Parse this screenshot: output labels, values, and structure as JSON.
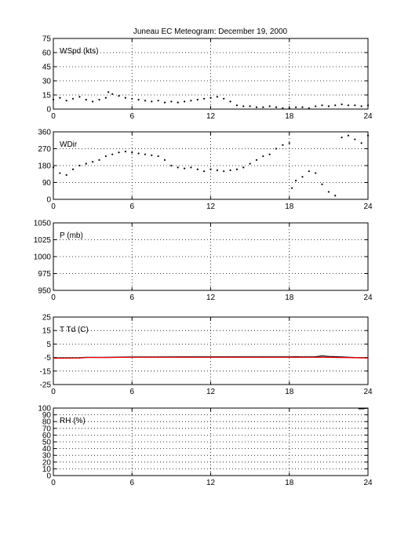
{
  "title": "Juneau EC Meteogram:   December 19, 2000",
  "colors": {
    "background": "#ffffff",
    "axis": "#000000",
    "grid": "#000000",
    "series_dark": "#000000",
    "series_red": "#ff0000"
  },
  "chart_data": [
    {
      "type": "scatter",
      "panel_label": "WSpd (kts)",
      "xlim": [
        0,
        24
      ],
      "xticks": [
        0,
        6,
        12,
        18,
        24
      ],
      "ylim": [
        0,
        75
      ],
      "yticks": [
        0,
        15,
        30,
        45,
        60,
        75
      ],
      "grid": true,
      "series": [
        {
          "color": "#000000",
          "x": [
            0,
            0.5,
            1,
            1.5,
            2,
            2.5,
            3,
            3.5,
            4,
            4.2,
            4.5,
            5,
            5.5,
            6,
            6.5,
            7,
            7.5,
            8,
            8.5,
            9,
            9.5,
            10,
            10.5,
            11,
            11.5,
            12,
            12.5,
            13,
            13.5,
            14,
            14.5,
            15,
            15.5,
            16,
            16.5,
            17,
            17.5,
            18,
            18.5,
            19,
            19.5,
            20,
            20.5,
            21,
            21.5,
            22,
            22.5,
            23,
            23.5,
            24
          ],
          "y": [
            10,
            12,
            9,
            11,
            13,
            10,
            8,
            10,
            12,
            18,
            16,
            14,
            12,
            11,
            10,
            9,
            8,
            9,
            7,
            8,
            7,
            8,
            9,
            10,
            11,
            12,
            13,
            11,
            8,
            4,
            3,
            3,
            2,
            2,
            3,
            2,
            1,
            1,
            2,
            2,
            1,
            3,
            4,
            3,
            4,
            5,
            4,
            4,
            3,
            4
          ]
        }
      ]
    },
    {
      "type": "scatter",
      "panel_label": "WDir",
      "xlim": [
        0,
        24
      ],
      "xticks": [
        0,
        6,
        12,
        18,
        24
      ],
      "ylim": [
        0,
        360
      ],
      "yticks": [
        0,
        90,
        180,
        270,
        360
      ],
      "grid": true,
      "series": [
        {
          "color": "#000000",
          "x": [
            0,
            0.5,
            1,
            1.5,
            2,
            2.5,
            3,
            3.5,
            4,
            4.5,
            5,
            5.5,
            6,
            6.5,
            7,
            7.5,
            8,
            8.5,
            9,
            9.5,
            10,
            10.5,
            11,
            11.5,
            12,
            12.5,
            13,
            13.5,
            14,
            14.5,
            15,
            15.5,
            16,
            16.5,
            17,
            17.5,
            18,
            18.2,
            18.5,
            19,
            19.5,
            20,
            20.5,
            21,
            21.5,
            22,
            22.5,
            23,
            23.5,
            24
          ],
          "y": [
            170,
            140,
            130,
            160,
            180,
            190,
            200,
            210,
            230,
            240,
            250,
            255,
            250,
            245,
            240,
            235,
            230,
            210,
            180,
            170,
            165,
            170,
            160,
            150,
            160,
            155,
            150,
            155,
            160,
            170,
            190,
            210,
            230,
            240,
            270,
            290,
            300,
            60,
            100,
            120,
            150,
            140,
            80,
            40,
            20,
            330,
            340,
            320,
            300,
            340
          ]
        }
      ]
    },
    {
      "type": "line",
      "panel_label": "P (mb)",
      "xlim": [
        0,
        24
      ],
      "xticks": [
        0,
        6,
        12,
        18,
        24
      ],
      "ylim": [
        950,
        1050
      ],
      "yticks": [
        950,
        975,
        1000,
        1025,
        1050
      ],
      "grid": true,
      "series": []
    },
    {
      "type": "line",
      "panel_label": "T Td (C)",
      "xlim": [
        0,
        24
      ],
      "xticks": [
        0,
        6,
        12,
        18,
        24
      ],
      "ylim": [
        -25,
        25
      ],
      "yticks": [
        -25,
        -15,
        -5,
        5,
        15,
        25
      ],
      "grid": true,
      "series": [
        {
          "color": "#000000",
          "x": [
            0,
            2,
            2.5,
            4,
            6,
            8,
            10,
            12,
            14,
            16,
            18,
            20,
            20.5,
            21,
            22,
            23,
            24
          ],
          "y": [
            -5.3,
            -5.2,
            -4.8,
            -4.8,
            -4.6,
            -4.6,
            -4.5,
            -4.5,
            -4.5,
            -4.5,
            -4.5,
            -4.4,
            -3.8,
            -4.2,
            -4.6,
            -5.0,
            -5.2
          ]
        },
        {
          "color": "#ff0000",
          "x": [
            0,
            2,
            2.5,
            4,
            6,
            8,
            10,
            12,
            14,
            16,
            18,
            20,
            21,
            22,
            23,
            24
          ],
          "y": [
            -5.5,
            -5.4,
            -5.0,
            -5.0,
            -4.8,
            -4.8,
            -4.8,
            -4.8,
            -4.8,
            -4.8,
            -4.8,
            -4.8,
            -4.9,
            -5.0,
            -5.2,
            -5.4
          ]
        }
      ]
    },
    {
      "type": "line",
      "panel_label": "RH (%)",
      "xlim": [
        0,
        24
      ],
      "xticks": [
        0,
        6,
        12,
        18,
        24
      ],
      "ylim": [
        0,
        100
      ],
      "yticks": [
        0,
        10,
        20,
        30,
        40,
        50,
        60,
        70,
        80,
        90,
        100
      ],
      "grid": true,
      "series": [
        {
          "color": "#000000",
          "x": [
            23.3,
            23.6,
            24
          ],
          "y": [
            99,
            99,
            100
          ]
        }
      ]
    }
  ]
}
